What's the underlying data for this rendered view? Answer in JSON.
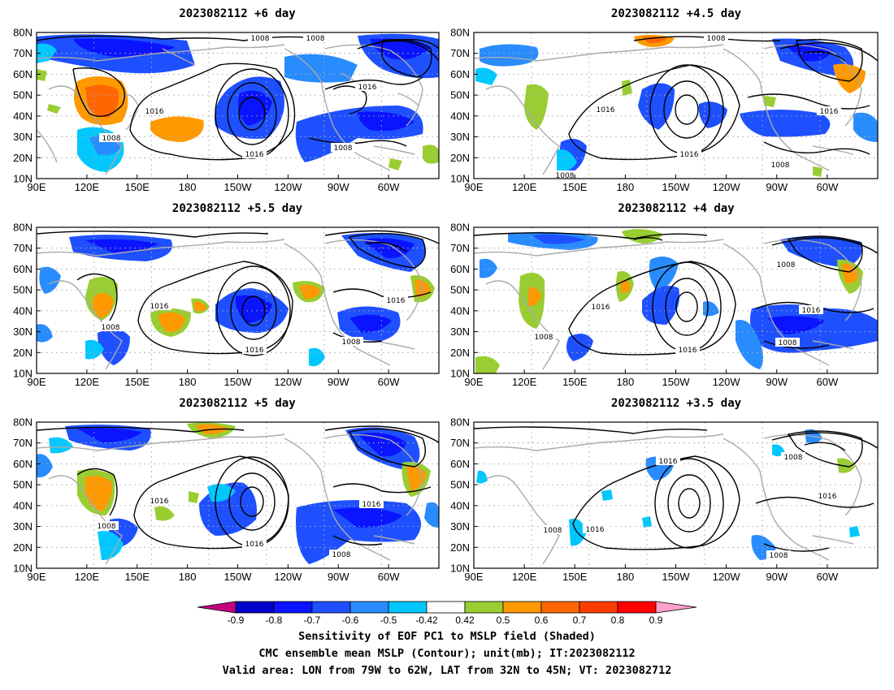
{
  "panels": [
    {
      "title": "2023082112  +6  day"
    },
    {
      "title": "2023082112  +4.5  day"
    },
    {
      "title": "2023082112  +5.5  day"
    },
    {
      "title": "2023082112  +4  day"
    },
    {
      "title": "2023082112  +5  day"
    },
    {
      "title": "2023082112  +3.5  day"
    }
  ],
  "axes": {
    "lat_labels": [
      "80N",
      "70N",
      "60N",
      "50N",
      "40N",
      "30N",
      "20N",
      "10N"
    ],
    "lon_labels": [
      "90E",
      "120E",
      "150E",
      "180",
      "150W",
      "120W",
      "90W",
      "60W"
    ]
  },
  "contour_labels": {
    "panel0": [
      "1008",
      "1008",
      "1016",
      "1016",
      "1016",
      "1008",
      "1008"
    ],
    "panel1": [
      "1008",
      "1016",
      "1016",
      "1016",
      "1008",
      "1008"
    ],
    "panel2": [
      "1016",
      "1008",
      "1016",
      "1016",
      "1008"
    ],
    "panel3": [
      "1008",
      "1016",
      "1016",
      "1016",
      "1008",
      "1008"
    ],
    "panel4": [
      "1016",
      "1008",
      "1016",
      "1016",
      "1008"
    ],
    "panel5": [
      "1016",
      "1008",
      "1016",
      "1016",
      "1008",
      "1008"
    ]
  },
  "colorbar": {
    "ticks": [
      "-0.9",
      "-0.8",
      "-0.7",
      "-0.6",
      "-0.5",
      "-0.42",
      "0.42",
      "0.5",
      "0.6",
      "0.7",
      "0.8",
      "0.9"
    ],
    "colors": {
      "lt_m09": "#c4007f",
      "m09_m08": "#0000c8",
      "m08_m07": "#0a14ff",
      "m07_m06": "#1e50ff",
      "m06_m05": "#288cff",
      "m05_m042": "#00c8ff",
      "neutral": "#ffffff",
      "p042_p05": "#9acd32",
      "p05_p06": "#ff9900",
      "p06_p07": "#ff6600",
      "p07_p08": "#ff3c00",
      "p08_p09": "#ff0000",
      "gt_p09": "#ffa0c8"
    }
  },
  "captions": [
    "Sensitivity of EOF PC1 to MSLP field (Shaded)",
    "CMC ensemble mean MSLP (Contour); unit(mb); IT:2023082112",
    "Valid area: LON from 79W to 62W, LAT from 32N to 45N; VT: 2023082712"
  ],
  "palette": {
    "coast": "#aaaaaa",
    "contour": "#000000",
    "grid": "#aaaaaa"
  }
}
